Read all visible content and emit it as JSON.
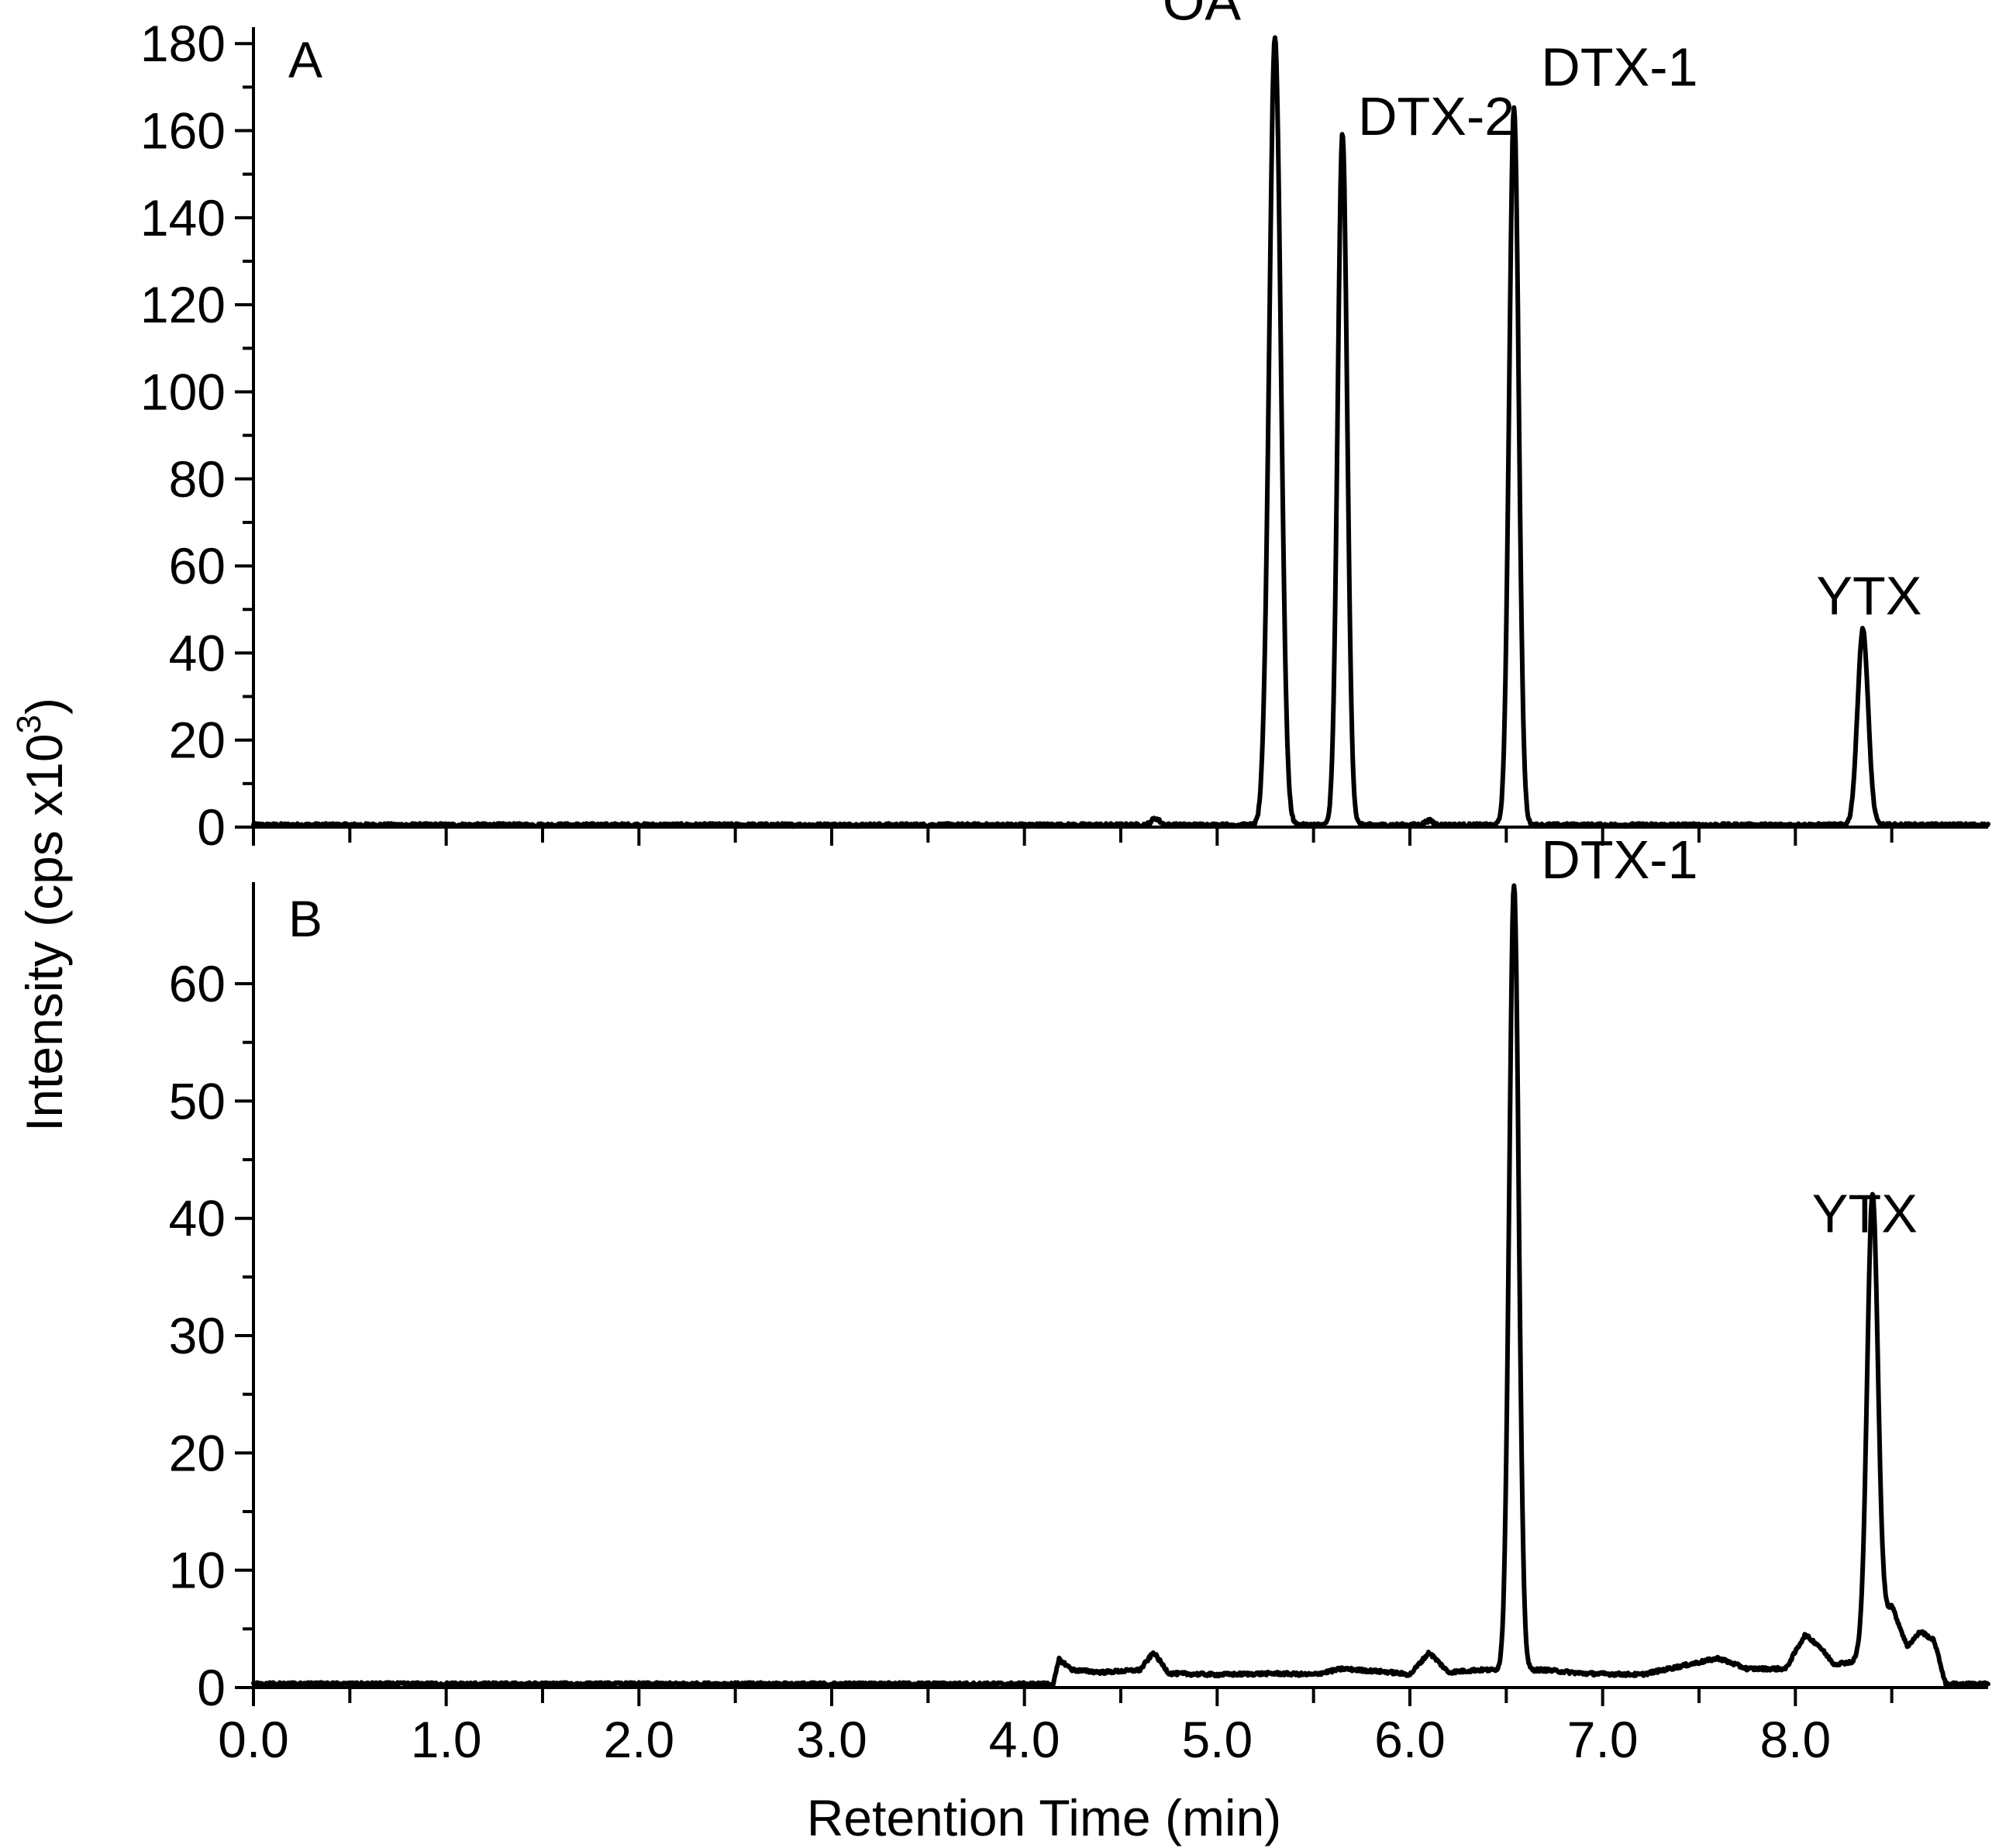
{
  "chart_data": {
    "type": "line",
    "xlabel": "Retention Time (min)",
    "ylabel": "Intensity (cps x10",
    "ylabel_superscript": "3",
    "ylabel_close": ")",
    "x_ticks": [
      "0.0",
      "1.0",
      "2.0",
      "3.0",
      "4.0",
      "5.0",
      "6.0",
      "7.0",
      "8.0"
    ],
    "xlim": [
      0,
      9
    ],
    "panels": [
      {
        "label": "A",
        "ylim": [
          0,
          182
        ],
        "y_ticks": [
          "0",
          "20",
          "40",
          "60",
          "80",
          "100",
          "120",
          "140",
          "160",
          "180"
        ],
        "baseline": 0.5,
        "peaks": [
          {
            "name": "OA",
            "x": 5.3,
            "y": 181,
            "width": 0.055
          },
          {
            "name": "DTX-2",
            "x": 5.65,
            "y": 159,
            "width": 0.045
          },
          {
            "name": "DTX-1",
            "x": 6.54,
            "y": 165,
            "width": 0.045
          },
          {
            "name": "YTX",
            "x": 8.35,
            "y": 45,
            "width": 0.05
          }
        ]
      },
      {
        "label": "B",
        "ylim": [
          0,
          68
        ],
        "y_ticks": [
          "0",
          "10",
          "20",
          "30",
          "40",
          "50",
          "60"
        ],
        "baseline": 0.3,
        "peaks": [
          {
            "name": "DTX-1",
            "x": 6.54,
            "y": 67,
            "width": 0.045
          },
          {
            "name": "YTX",
            "x": 8.4,
            "y": 37.5,
            "width": 0.05
          }
        ],
        "background": [
          [
            4.15,
            0.3
          ],
          [
            4.18,
            2.4
          ],
          [
            4.25,
            1.5
          ],
          [
            4.4,
            1.3
          ],
          [
            4.6,
            1.5
          ],
          [
            4.67,
            3.0
          ],
          [
            4.75,
            1.2
          ],
          [
            5.0,
            1.1
          ],
          [
            5.3,
            1.2
          ],
          [
            5.5,
            1.1
          ],
          [
            5.65,
            1.6
          ],
          [
            5.9,
            1.3
          ],
          [
            6.0,
            1.1
          ],
          [
            6.1,
            3.0
          ],
          [
            6.2,
            1.3
          ],
          [
            6.35,
            1.5
          ],
          [
            6.7,
            1.5
          ],
          [
            6.9,
            1.2
          ],
          [
            7.2,
            1.1
          ],
          [
            7.4,
            1.8
          ],
          [
            7.6,
            2.5
          ],
          [
            7.75,
            1.6
          ],
          [
            7.95,
            1.6
          ],
          [
            8.05,
            4.5
          ],
          [
            8.12,
            3.6
          ],
          [
            8.2,
            2.0
          ],
          [
            8.3,
            2.2
          ],
          [
            8.5,
            7.0
          ],
          [
            8.58,
            3.5
          ],
          [
            8.65,
            4.8
          ],
          [
            8.72,
            4.0
          ],
          [
            8.78,
            0.3
          ],
          [
            9.0,
            0.3
          ]
        ]
      }
    ]
  }
}
